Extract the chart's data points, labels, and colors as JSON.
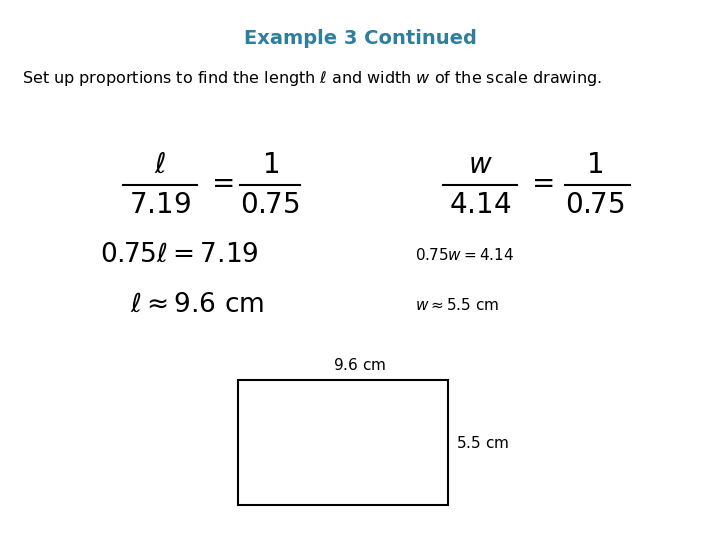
{
  "title": "Example 3 Continued",
  "title_color": "#2E7F9F",
  "background_color": "#ffffff",
  "fig_width": 7.2,
  "fig_height": 5.4,
  "dpi": 100
}
